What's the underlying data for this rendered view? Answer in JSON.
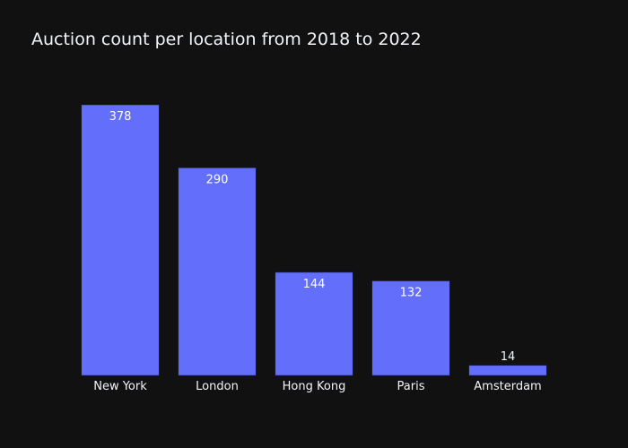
{
  "colors": {
    "background": "#111111",
    "bar": "#636efa",
    "bar_outline": "#1f2640",
    "text": "#f2f5fa",
    "label_inside": "#ffffff"
  },
  "chart_data": {
    "type": "bar",
    "title": "Auction count per location from 2018 to 2022",
    "xlabel": "",
    "ylabel": "",
    "categories": [
      "New York",
      "London",
      "Hong Kong",
      "Paris",
      "Amsterdam"
    ],
    "values": [
      378,
      290,
      144,
      132,
      14
    ],
    "value_labels": [
      "378",
      "290",
      "144",
      "132",
      "14"
    ],
    "ylim": [
      0,
      378
    ],
    "grid": false,
    "legend": "none"
  }
}
